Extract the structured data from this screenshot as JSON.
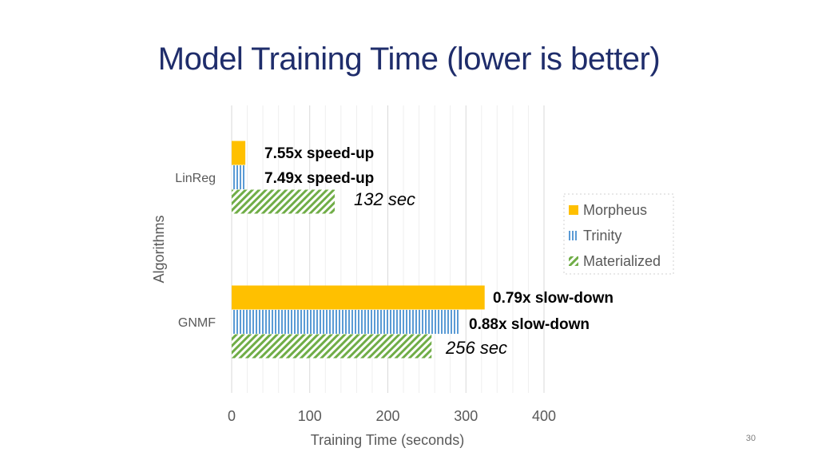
{
  "slide": {
    "title": "Model Training Time (lower is better)",
    "page_number": "30"
  },
  "chart_data": {
    "type": "bar",
    "orientation": "horizontal",
    "categories": [
      "LinReg",
      "GNMF"
    ],
    "series": [
      {
        "name": "Morpheus",
        "values": [
          17.5,
          324
        ],
        "color": "#ffc000",
        "pattern": "solid"
      },
      {
        "name": "Trinity",
        "values": [
          17.6,
          291
        ],
        "color": "#5b9bd5",
        "pattern": "vertical-lines"
      },
      {
        "name": "Materialized",
        "values": [
          132,
          256
        ],
        "color": "#70ad47",
        "pattern": "diagonal-stripes"
      }
    ],
    "annotations": [
      {
        "category": "LinReg",
        "series": "Morpheus",
        "text": "7.55x speed-up",
        "style": "bold"
      },
      {
        "category": "LinReg",
        "series": "Trinity",
        "text": "7.49x speed-up",
        "style": "bold"
      },
      {
        "category": "LinReg",
        "series": "Materialized",
        "text": "132 sec",
        "style": "italic"
      },
      {
        "category": "GNMF",
        "series": "Morpheus",
        "text": "0.79x slow-down",
        "style": "bold"
      },
      {
        "category": "GNMF",
        "series": "Trinity",
        "text": "0.88x slow-down",
        "style": "bold"
      },
      {
        "category": "GNMF",
        "series": "Materialized",
        "text": "256 sec",
        "style": "italic"
      }
    ],
    "xlabel": "Training Time (seconds)",
    "ylabel": "Algorithms",
    "xlim": [
      0,
      400
    ],
    "xticks": [
      0,
      100,
      200,
      300,
      400
    ],
    "grid": true,
    "legend_position": "right"
  }
}
